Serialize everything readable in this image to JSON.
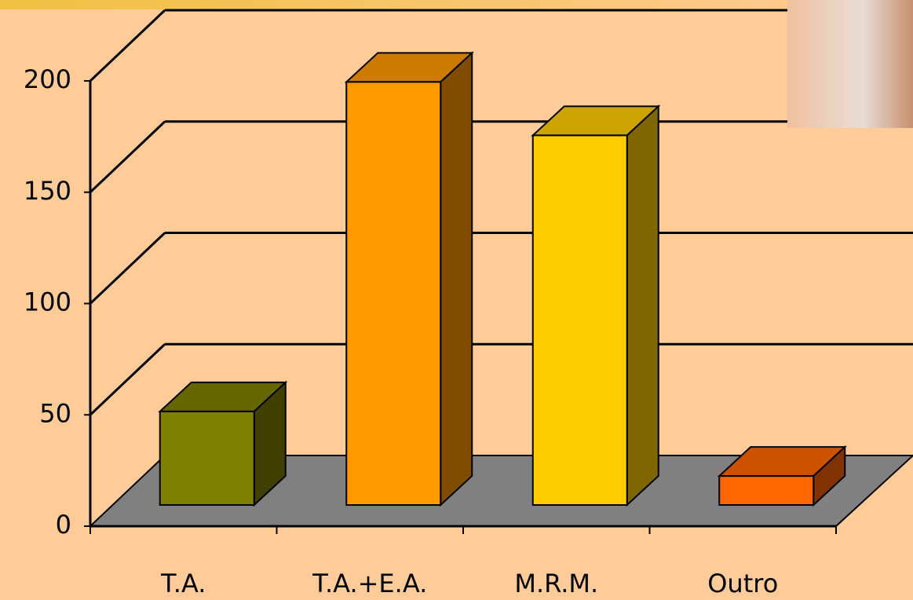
{
  "chart_data": {
    "type": "bar3d",
    "categories": [
      "T.A.",
      "T.A.+E.A.",
      "M.R.M.",
      "Outro"
    ],
    "values": [
      42,
      190,
      166,
      13
    ],
    "colors": [
      "#808000",
      "#ff9900",
      "#ffcc00",
      "#ff6600"
    ],
    "ylim": [
      0,
      200
    ],
    "yticks": [
      0,
      50,
      100,
      150,
      200
    ],
    "grid": true
  }
}
